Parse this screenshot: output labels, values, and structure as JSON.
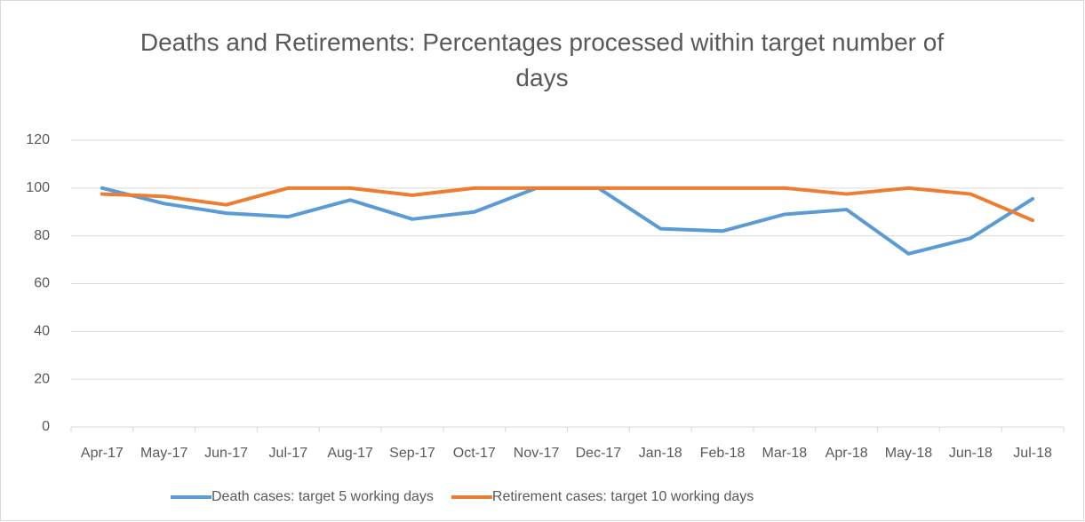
{
  "chart_data": {
    "type": "line",
    "title": "Deaths and Retirements: Percentages processed within target number of days",
    "categories": [
      "Apr-17",
      "May-17",
      "Jun-17",
      "Jul-17",
      "Aug-17",
      "Sep-17",
      "Oct-17",
      "Nov-17",
      "Dec-17",
      "Jan-18",
      "Feb-18",
      "Mar-18",
      "Apr-18",
      "May-18",
      "Jun-18",
      "Jul-18"
    ],
    "series": [
      {
        "name": "Death cases: target 5 working days",
        "color": "#5b9bd5",
        "values": [
          100,
          93.5,
          89.5,
          88,
          95,
          87,
          90,
          100,
          100,
          83,
          82,
          89,
          91,
          72.5,
          79,
          95.5
        ]
      },
      {
        "name": "Retirement cases: target 10 working days",
        "color": "#ed7d31",
        "values": [
          97.5,
          96.5,
          93,
          100,
          100,
          97,
          100,
          100,
          100,
          100,
          100,
          100,
          97.5,
          100,
          97.5,
          86.5
        ]
      }
    ],
    "ylim": [
      0,
      120
    ],
    "yticks": [
      0,
      20,
      40,
      60,
      80,
      100,
      120
    ],
    "grid": true,
    "legend": "bottom"
  }
}
